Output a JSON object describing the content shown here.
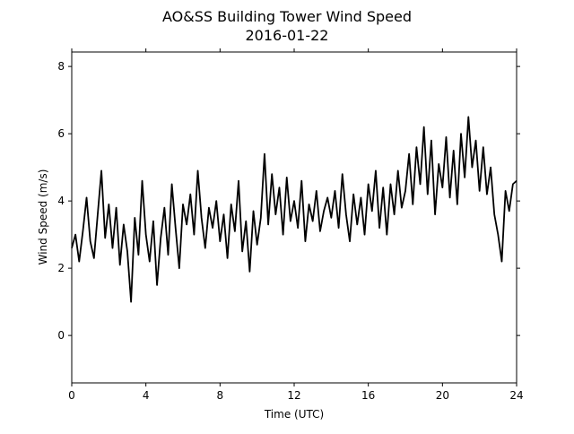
{
  "chart_data": {
    "type": "line",
    "title": "AO&SS Building Tower Wind Speed",
    "subtitle": "2016-01-22",
    "x_label": "Time (UTC)",
    "y_label": "Wind Speed (m/s)",
    "xlim": [
      0,
      24
    ],
    "xticks": [
      0,
      4,
      8,
      12,
      16,
      20,
      24
    ],
    "ylim": [
      -1.41,
      8.43
    ],
    "yticks": [
      0,
      2,
      4,
      6,
      8
    ],
    "grid": false,
    "series": [
      {
        "name": "Wind Speed",
        "color": "#000000",
        "x": [
          0,
          0.2,
          0.4,
          0.6,
          0.8,
          1,
          1.2,
          1.4,
          1.6,
          1.8,
          2,
          2.2,
          2.4,
          2.6,
          2.8,
          3,
          3.2,
          3.4,
          3.6,
          3.8,
          4,
          4.2,
          4.4,
          4.6,
          4.8,
          5,
          5.2,
          5.4,
          5.6,
          5.8,
          6,
          6.2,
          6.4,
          6.6,
          6.8,
          7,
          7.2,
          7.4,
          7.6,
          7.8,
          8,
          8.2,
          8.4,
          8.6,
          8.8,
          9,
          9.2,
          9.4,
          9.6,
          9.8,
          10,
          10.2,
          10.4,
          10.6,
          10.8,
          11,
          11.2,
          11.4,
          11.6,
          11.8,
          12,
          12.2,
          12.4,
          12.6,
          12.8,
          13,
          13.2,
          13.4,
          13.6,
          13.8,
          14,
          14.2,
          14.4,
          14.6,
          14.8,
          15,
          15.2,
          15.4,
          15.6,
          15.8,
          16,
          16.2,
          16.4,
          16.6,
          16.8,
          17,
          17.2,
          17.4,
          17.6,
          17.8,
          18,
          18.2,
          18.4,
          18.6,
          18.8,
          19,
          19.2,
          19.4,
          19.6,
          19.8,
          20,
          20.2,
          20.4,
          20.6,
          20.8,
          21,
          21.2,
          21.4,
          21.6,
          21.8,
          22,
          22.2,
          22.4,
          22.6,
          22.8,
          23,
          23.2,
          23.4,
          23.6,
          23.8,
          24
        ],
        "values": [
          2.6,
          3.0,
          2.2,
          3.1,
          4.1,
          2.8,
          2.3,
          3.6,
          4.9,
          2.9,
          3.9,
          2.6,
          3.8,
          2.1,
          3.3,
          2.5,
          1.0,
          3.5,
          2.4,
          4.6,
          3.0,
          2.2,
          3.4,
          1.5,
          2.9,
          3.8,
          2.4,
          4.5,
          3.2,
          2.0,
          3.9,
          3.3,
          4.2,
          3.0,
          4.9,
          3.5,
          2.6,
          3.8,
          3.2,
          4.0,
          2.8,
          3.6,
          2.3,
          3.9,
          3.1,
          4.6,
          2.5,
          3.4,
          1.9,
          3.7,
          2.7,
          3.5,
          5.4,
          3.3,
          4.8,
          3.6,
          4.4,
          3.0,
          4.7,
          3.4,
          4.0,
          3.2,
          4.6,
          2.8,
          3.9,
          3.4,
          4.3,
          3.1,
          3.7,
          4.1,
          3.5,
          4.3,
          3.2,
          4.8,
          3.6,
          2.8,
          4.2,
          3.3,
          4.1,
          3.0,
          4.5,
          3.7,
          4.9,
          3.2,
          4.4,
          3.0,
          4.5,
          3.6,
          4.9,
          3.8,
          4.3,
          5.4,
          3.9,
          5.6,
          4.5,
          6.2,
          4.2,
          5.8,
          3.6,
          5.1,
          4.4,
          5.9,
          4.1,
          5.5,
          3.9,
          6.0,
          4.7,
          6.5,
          5.0,
          5.8,
          4.3,
          5.6,
          4.2,
          5.0,
          3.6,
          3.0,
          2.2,
          4.3,
          3.7,
          4.5,
          4.6
        ]
      }
    ]
  }
}
